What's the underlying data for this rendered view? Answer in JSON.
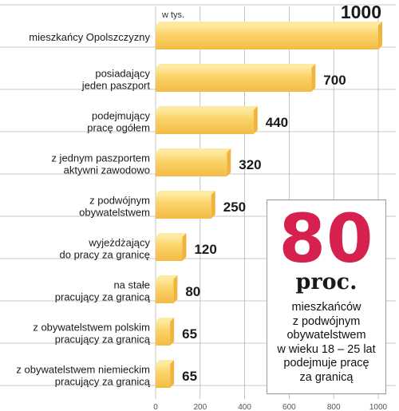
{
  "chart_data": {
    "type": "bar",
    "orientation": "horizontal",
    "unit_label": "w tys.",
    "categories": [
      "mieszkańcy Opolszczyzny",
      "posiadający\njeden paszport",
      "podejmujący\npracę ogółem",
      "z jednym paszportem\naktywni zawodowo",
      "z podwójnym\nobywatelstwem",
      "wyjeżdżający\ndo pracy za granicę",
      "na stałe\npracujący za granicą",
      "z obywatelstwem polskim\npracujący za granicą",
      "z obywatelstwem niemieckim\npracujący za granicą"
    ],
    "values": [
      1000,
      700,
      440,
      320,
      250,
      120,
      80,
      65,
      65
    ],
    "value_labels": [
      "1000",
      "700",
      "440",
      "320",
      "250",
      "120",
      "80",
      "65",
      "65"
    ],
    "xlim": [
      0,
      1000
    ],
    "x_ticks": [
      0,
      200,
      400,
      600,
      800,
      1000
    ],
    "x_tick_labels": [
      "0",
      "200",
      "400",
      "600",
      "800",
      "1000"
    ],
    "grid": true,
    "colors": {
      "bar_face": "#fbd064",
      "bar_light": "#fde9a0",
      "bar_dark": "#f0b43c",
      "grid": "#b5b5b5"
    }
  },
  "callout": {
    "big_number": "80",
    "unit": "proc.",
    "description": "mieszkańców\nz podwójnym\nobywatelstwem\nw wieku 18 – 25 lat\npodejmuje pracę\nza granicą",
    "colors": {
      "number": "#d6204e"
    }
  }
}
